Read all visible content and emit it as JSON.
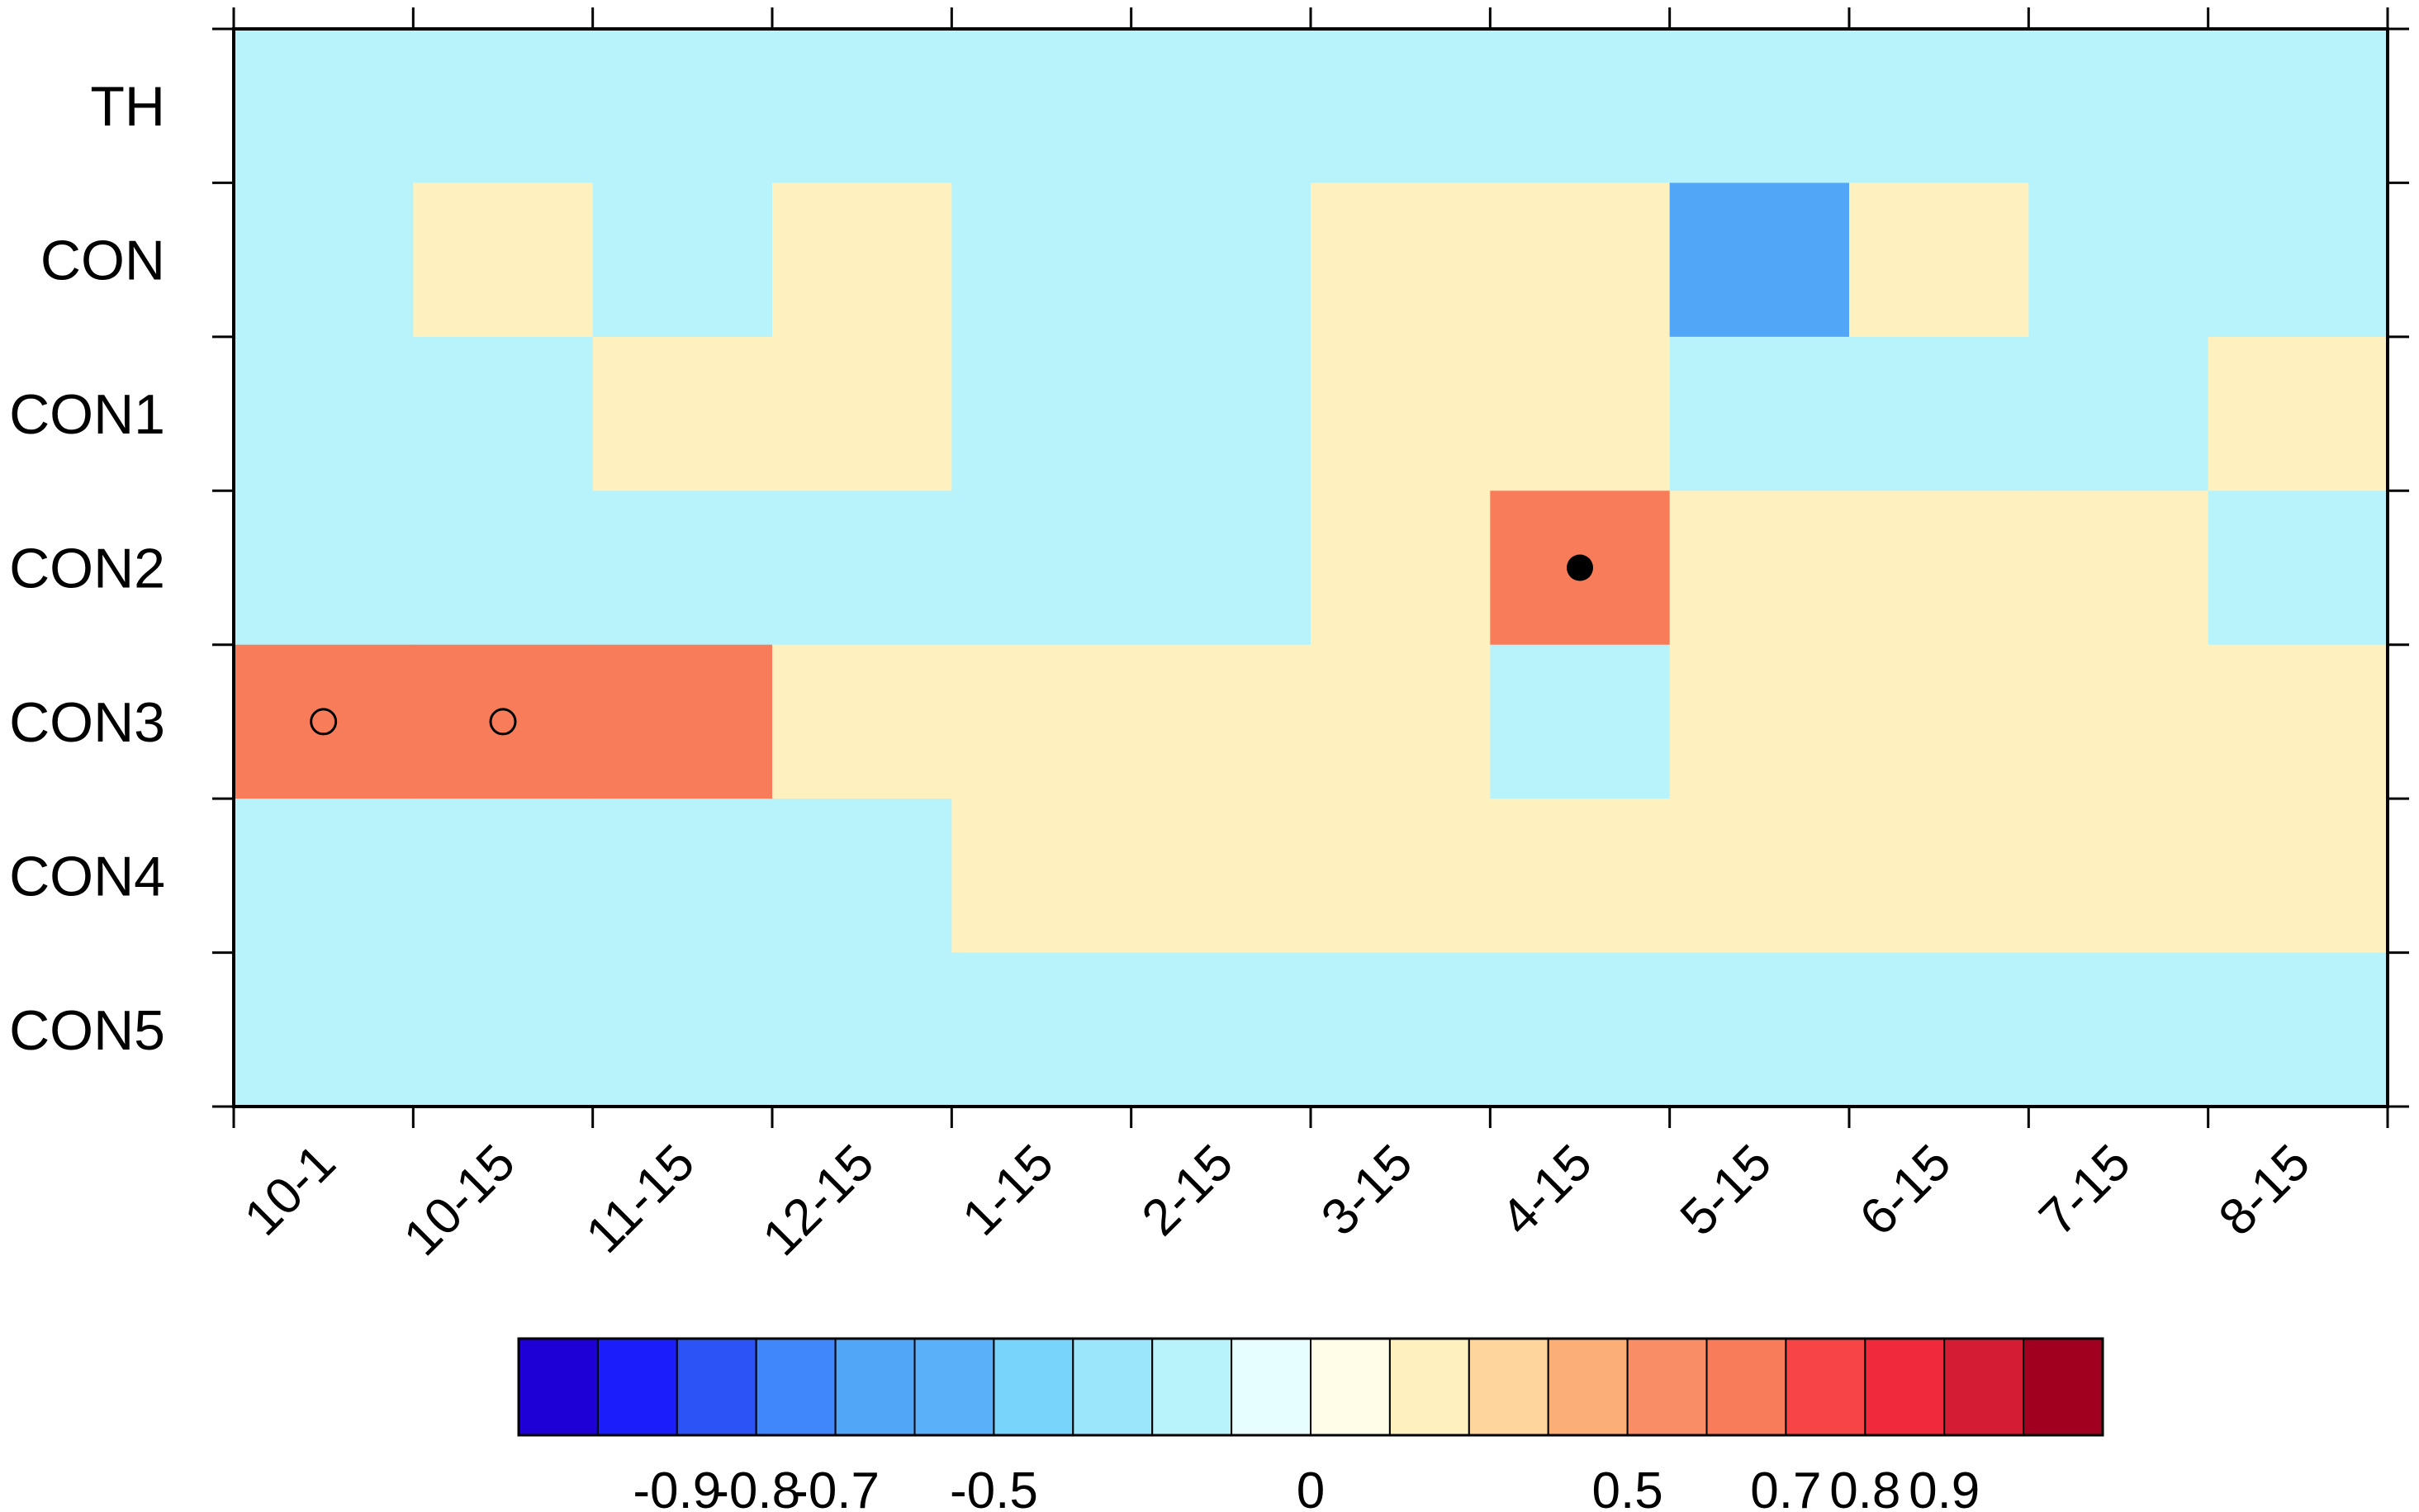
{
  "chart_data": {
    "type": "heatmap",
    "title": "",
    "xlabel": "",
    "ylabel": "",
    "x_categories": [
      "10-1",
      "10-15",
      "11-15",
      "12-15",
      "1-15",
      "2-15",
      "3-15",
      "4-15",
      "5-15",
      "6-15",
      "7-15",
      "8-15"
    ],
    "y_categories": [
      "TH",
      "CON",
      "CON1",
      "CON2",
      "CON3",
      "CON4",
      "CON5"
    ],
    "values": [
      [
        -0.2,
        -0.2,
        -0.2,
        -0.2,
        -0.2,
        -0.2,
        -0.2,
        -0.2,
        -0.2,
        -0.2,
        -0.2,
        -0.2
      ],
      [
        -0.2,
        0.2,
        -0.2,
        0.2,
        -0.2,
        -0.2,
        0.2,
        0.2,
        -0.55,
        0.2,
        -0.2,
        -0.2
      ],
      [
        -0.2,
        -0.2,
        0.2,
        0.2,
        -0.2,
        -0.2,
        0.2,
        0.2,
        -0.2,
        -0.2,
        -0.2,
        0.2
      ],
      [
        -0.2,
        -0.2,
        -0.2,
        -0.2,
        -0.2,
        -0.2,
        0.2,
        0.55,
        0.2,
        0.2,
        0.2,
        -0.2
      ],
      [
        0.55,
        0.55,
        0.55,
        0.2,
        0.2,
        0.2,
        0.2,
        -0.2,
        0.2,
        0.2,
        0.2,
        0.2
      ],
      [
        -0.2,
        -0.2,
        -0.2,
        -0.2,
        0.2,
        0.2,
        0.2,
        0.2,
        0.2,
        0.2,
        0.2,
        0.2
      ],
      [
        -0.2,
        -0.2,
        -0.2,
        -0.2,
        -0.2,
        -0.2,
        -0.2,
        -0.2,
        -0.2,
        -0.2,
        -0.2,
        -0.2
      ]
    ],
    "markers": [
      {
        "row": "CON2",
        "col": "4-15",
        "style": "filled-circle"
      },
      {
        "row": "CON3",
        "col": "10-1",
        "style": "open-circle"
      },
      {
        "row": "CON3",
        "col": "10-15",
        "style": "open-circle"
      }
    ],
    "colorbar": {
      "orientation": "horizontal",
      "placement": "bottom",
      "colors": [
        "#1e00d6",
        "#1b1efb",
        "#2b53f6",
        "#3f87fa",
        "#51a6f7",
        "#5ab1f9",
        "#79d4fb",
        "#9be6fb",
        "#b8f3fb",
        "#e6fefd",
        "#fffde8",
        "#fff1bf",
        "#fed59c",
        "#fcae77",
        "#f98d66",
        "#f87c59",
        "#f64447",
        "#f1293c",
        "#d41c35",
        "#a2001f"
      ],
      "tick_labels": [
        "-0.9",
        "-0.8",
        "-0.7",
        "-0.5",
        "0",
        "0.5",
        "0.7",
        "0.8",
        "0.9"
      ]
    },
    "grid": false,
    "legend": "none"
  }
}
